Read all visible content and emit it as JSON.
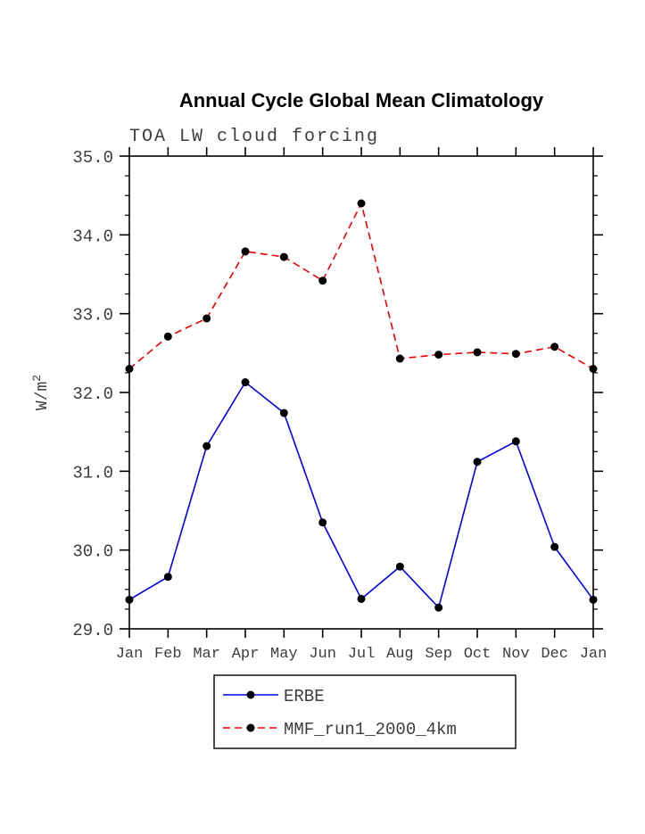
{
  "chart_data": {
    "type": "line",
    "title": "Annual Cycle Global Mean Climatology",
    "subtitle": "TOA LW cloud forcing",
    "ylabel": "W/m^2",
    "xlabel": "",
    "ylim": [
      29.0,
      35.0
    ],
    "y_major_step": 1.0,
    "y_minor_step": 0.25,
    "grid": false,
    "legend_position": "bottom",
    "categories": [
      "Jan",
      "Feb",
      "Mar",
      "Apr",
      "May",
      "Jun",
      "Jul",
      "Aug",
      "Sep",
      "Oct",
      "Nov",
      "Dec",
      "Jan"
    ],
    "series": [
      {
        "name": "ERBE",
        "color": "#0000ee",
        "line_style": "solid",
        "marker_color": "#000000",
        "values": [
          29.37,
          29.66,
          31.32,
          32.13,
          31.74,
          30.35,
          29.38,
          29.79,
          29.27,
          31.12,
          31.38,
          30.04,
          29.37
        ]
      },
      {
        "name": "MMF_run1_2000_4km",
        "color": "#ee0000",
        "line_style": "dashed",
        "marker_color": "#000000",
        "values": [
          32.3,
          32.71,
          32.94,
          33.79,
          33.72,
          33.42,
          34.4,
          32.43,
          32.48,
          32.51,
          32.49,
          32.58,
          32.3
        ]
      }
    ]
  }
}
